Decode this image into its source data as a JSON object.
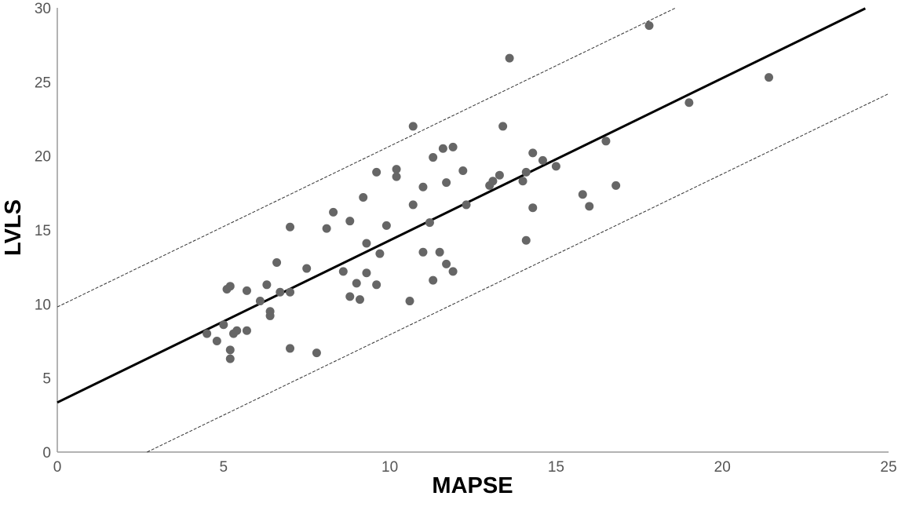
{
  "chart_data": {
    "type": "scatter",
    "title": "",
    "xlabel": "MAPSE",
    "ylabel": "LVLS",
    "xlim": [
      0,
      25
    ],
    "ylim": [
      0,
      30
    ],
    "xticks": [
      "0",
      "5",
      "10",
      "15",
      "20",
      "25"
    ],
    "yticks": [
      "0",
      "5",
      "10",
      "15",
      "20",
      "25",
      "30"
    ],
    "grid": false,
    "legend": "none",
    "fit_line": {
      "intercept": 3.35,
      "slope": 1.095,
      "x_range": [
        0,
        24.3
      ]
    },
    "prediction_band": {
      "upper": {
        "x_range": [
          0,
          18.6
        ],
        "y_range": [
          9.8,
          30
        ]
      },
      "lower": {
        "x_range": [
          2.7,
          25
        ],
        "y_range": [
          0,
          24.2
        ]
      }
    },
    "points_color": "#666666",
    "line_color": "#000000",
    "x": [
      4.5,
      4.8,
      5.0,
      5.1,
      5.2,
      5.2,
      5.2,
      5.3,
      5.4,
      5.7,
      5.7,
      6.1,
      6.3,
      6.4,
      6.4,
      6.6,
      6.7,
      7.0,
      7.0,
      7.0,
      7.5,
      7.8,
      8.1,
      8.3,
      8.6,
      8.8,
      8.8,
      9.0,
      9.1,
      9.2,
      9.3,
      9.3,
      9.6,
      9.6,
      9.7,
      9.9,
      10.2,
      10.2,
      10.6,
      10.7,
      10.7,
      11.0,
      11.0,
      11.2,
      11.3,
      11.3,
      11.5,
      11.6,
      11.7,
      11.7,
      11.9,
      11.9,
      12.2,
      12.3,
      13.0,
      13.1,
      13.3,
      13.4,
      13.6,
      14.0,
      14.1,
      14.1,
      14.3,
      14.3,
      14.6,
      15.0,
      15.8,
      16.0,
      16.5,
      16.8,
      17.8,
      19.0,
      21.4
    ],
    "y": [
      8.0,
      7.5,
      8.6,
      11.0,
      6.3,
      6.9,
      11.2,
      8.0,
      8.2,
      10.9,
      8.2,
      10.2,
      11.3,
      9.2,
      9.5,
      12.8,
      10.8,
      15.2,
      10.8,
      7.0,
      12.4,
      6.7,
      15.1,
      16.2,
      12.2,
      15.6,
      10.5,
      11.4,
      10.3,
      17.2,
      14.1,
      12.1,
      11.3,
      18.9,
      13.4,
      15.3,
      19.1,
      18.6,
      10.2,
      16.7,
      22.0,
      17.9,
      13.5,
      15.5,
      19.9,
      11.6,
      13.5,
      20.5,
      18.2,
      12.7,
      20.6,
      12.2,
      19.0,
      16.7,
      18.0,
      18.3,
      18.7,
      22.0,
      26.6,
      18.3,
      18.9,
      14.3,
      16.5,
      20.2,
      19.7,
      19.3,
      17.4,
      16.6,
      21.0,
      18.0,
      28.8,
      23.6,
      25.3
    ]
  }
}
